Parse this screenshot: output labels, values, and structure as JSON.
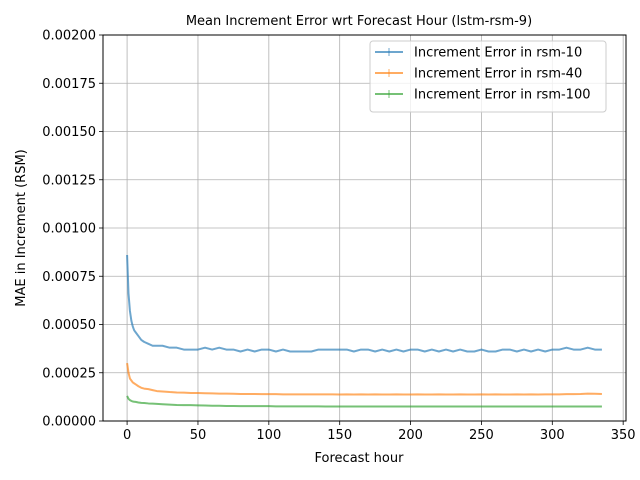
{
  "chart_data": {
    "type": "line",
    "title": "Mean Increment Error wrt Forecast Hour (lstm-rsm-9)",
    "xlabel": "Forecast hour",
    "ylabel": "MAE in Increment (RSM)",
    "xlim": [
      -17,
      352
    ],
    "ylim": [
      0,
      0.002
    ],
    "xticks": [
      0,
      50,
      100,
      150,
      200,
      250,
      300,
      350
    ],
    "xtick_labels": [
      "0",
      "50",
      "100",
      "150",
      "200",
      "250",
      "300",
      "350"
    ],
    "yticks": [
      0,
      0.00025,
      0.0005,
      0.00075,
      0.001,
      0.00125,
      0.0015,
      0.00175,
      0.002
    ],
    "ytick_labels": [
      "0.00000",
      "0.00025",
      "0.00050",
      "0.00075",
      "0.00100",
      "0.00125",
      "0.00150",
      "0.00175",
      "0.00200"
    ],
    "grid": true,
    "legend_position": "top-right",
    "series": [
      {
        "name": "Increment Error in rsm-10",
        "color": "#1f77b4",
        "x": [
          0,
          1,
          2,
          3,
          4,
          5,
          6,
          8,
          10,
          12,
          15,
          18,
          21,
          25,
          30,
          35,
          40,
          45,
          50,
          55,
          60,
          65,
          70,
          75,
          80,
          85,
          90,
          95,
          100,
          105,
          110,
          115,
          120,
          125,
          130,
          135,
          140,
          145,
          150,
          155,
          160,
          165,
          170,
          175,
          180,
          185,
          190,
          195,
          200,
          205,
          210,
          215,
          220,
          225,
          230,
          235,
          240,
          245,
          250,
          255,
          260,
          265,
          270,
          275,
          280,
          285,
          290,
          295,
          300,
          305,
          310,
          315,
          320,
          325,
          330,
          335
        ],
        "y": [
          0.00086,
          0.00066,
          0.00057,
          0.00052,
          0.00049,
          0.00047,
          0.00046,
          0.00044,
          0.00042,
          0.00041,
          0.0004,
          0.00039,
          0.00039,
          0.00039,
          0.00038,
          0.00038,
          0.00037,
          0.00037,
          0.00037,
          0.00038,
          0.00037,
          0.00038,
          0.00037,
          0.00037,
          0.00036,
          0.00037,
          0.00036,
          0.00037,
          0.00037,
          0.00036,
          0.00037,
          0.00036,
          0.00036,
          0.00036,
          0.00036,
          0.00037,
          0.00037,
          0.00037,
          0.00037,
          0.00037,
          0.00036,
          0.00037,
          0.00037,
          0.00036,
          0.00037,
          0.00036,
          0.00037,
          0.00036,
          0.00037,
          0.00037,
          0.00036,
          0.00037,
          0.00036,
          0.00037,
          0.00036,
          0.00037,
          0.00036,
          0.00036,
          0.00037,
          0.00036,
          0.00036,
          0.00037,
          0.00037,
          0.00036,
          0.00037,
          0.00036,
          0.00037,
          0.00036,
          0.00037,
          0.00037,
          0.00038,
          0.00037,
          0.00037,
          0.00038,
          0.00037,
          0.00037
        ]
      },
      {
        "name": "Increment Error in rsm-40",
        "color": "#ff7f0e",
        "x": [
          0,
          1,
          2,
          3,
          4,
          5,
          6,
          8,
          10,
          12,
          15,
          18,
          21,
          25,
          30,
          35,
          40,
          45,
          50,
          55,
          60,
          65,
          70,
          75,
          80,
          85,
          90,
          95,
          100,
          105,
          110,
          115,
          120,
          125,
          130,
          135,
          140,
          145,
          150,
          155,
          160,
          165,
          170,
          175,
          180,
          185,
          190,
          195,
          200,
          205,
          210,
          215,
          220,
          225,
          230,
          235,
          240,
          245,
          250,
          255,
          260,
          265,
          270,
          275,
          280,
          285,
          290,
          295,
          300,
          305,
          310,
          315,
          320,
          325,
          330,
          335
        ],
        "y": [
          0.0003,
          0.00025,
          0.00022,
          0.00021,
          0.0002,
          0.000195,
          0.00019,
          0.00018,
          0.000172,
          0.000168,
          0.000165,
          0.00016,
          0.000155,
          0.000153,
          0.00015,
          0.000148,
          0.000147,
          0.000145,
          0.000145,
          0.000144,
          0.000143,
          0.000142,
          0.000142,
          0.000141,
          0.00014,
          0.00014,
          0.00014,
          0.000139,
          0.000139,
          0.000139,
          0.000138,
          0.000138,
          0.000138,
          0.000138,
          0.000138,
          0.000138,
          0.000138,
          0.000138,
          0.000137,
          0.000138,
          0.000137,
          0.000138,
          0.000137,
          0.000138,
          0.000137,
          0.000137,
          0.000138,
          0.000137,
          0.000137,
          0.000138,
          0.000137,
          0.000137,
          0.000138,
          0.000137,
          0.000137,
          0.000138,
          0.000137,
          0.000137,
          0.000138,
          0.000137,
          0.000138,
          0.000137,
          0.000137,
          0.000138,
          0.000137,
          0.000138,
          0.000137,
          0.000138,
          0.000138,
          0.000138,
          0.000139,
          0.000139,
          0.00014,
          0.000142,
          0.000141,
          0.00014
        ]
      },
      {
        "name": "Increment Error in rsm-100",
        "color": "#2ca02c",
        "x": [
          0,
          1,
          2,
          3,
          4,
          5,
          6,
          8,
          10,
          12,
          15,
          18,
          21,
          25,
          30,
          35,
          40,
          45,
          50,
          55,
          60,
          65,
          70,
          75,
          80,
          85,
          90,
          95,
          100,
          105,
          110,
          115,
          120,
          125,
          130,
          135,
          140,
          145,
          150,
          155,
          160,
          165,
          170,
          175,
          180,
          185,
          190,
          195,
          200,
          205,
          210,
          215,
          220,
          225,
          230,
          235,
          240,
          245,
          250,
          255,
          260,
          265,
          270,
          275,
          280,
          285,
          290,
          295,
          300,
          305,
          310,
          315,
          320,
          325,
          330,
          335
        ],
        "y": [
          0.00013,
          0.000115,
          0.000108,
          0.000104,
          0.000101,
          0.0001,
          9.9e-05,
          9.6e-05,
          9.4e-05,
          9.3e-05,
          9.1e-05,
          9e-05,
          8.9e-05,
          8.7e-05,
          8.5e-05,
          8.3e-05,
          8.2e-05,
          8.2e-05,
          8.1e-05,
          8e-05,
          7.9e-05,
          7.9e-05,
          7.8e-05,
          7.8e-05,
          7.7e-05,
          7.7e-05,
          7.7e-05,
          7.7e-05,
          7.7e-05,
          7.6e-05,
          7.6e-05,
          7.6e-05,
          7.6e-05,
          7.6e-05,
          7.6e-05,
          7.6e-05,
          7.5e-05,
          7.5e-05,
          7.5e-05,
          7.5e-05,
          7.5e-05,
          7.5e-05,
          7.5e-05,
          7.5e-05,
          7.5e-05,
          7.5e-05,
          7.5e-05,
          7.5e-05,
          7.5e-05,
          7.5e-05,
          7.5e-05,
          7.5e-05,
          7.5e-05,
          7.5e-05,
          7.5e-05,
          7.5e-05,
          7.5e-05,
          7.5e-05,
          7.5e-05,
          7.5e-05,
          7.5e-05,
          7.5e-05,
          7.5e-05,
          7.5e-05,
          7.5e-05,
          7.5e-05,
          7.5e-05,
          7.5e-05,
          7.5e-05,
          7.5e-05,
          7.5e-05,
          7.5e-05,
          7.5e-05,
          7.5e-05,
          7.5e-05,
          7.5e-05
        ]
      }
    ]
  }
}
